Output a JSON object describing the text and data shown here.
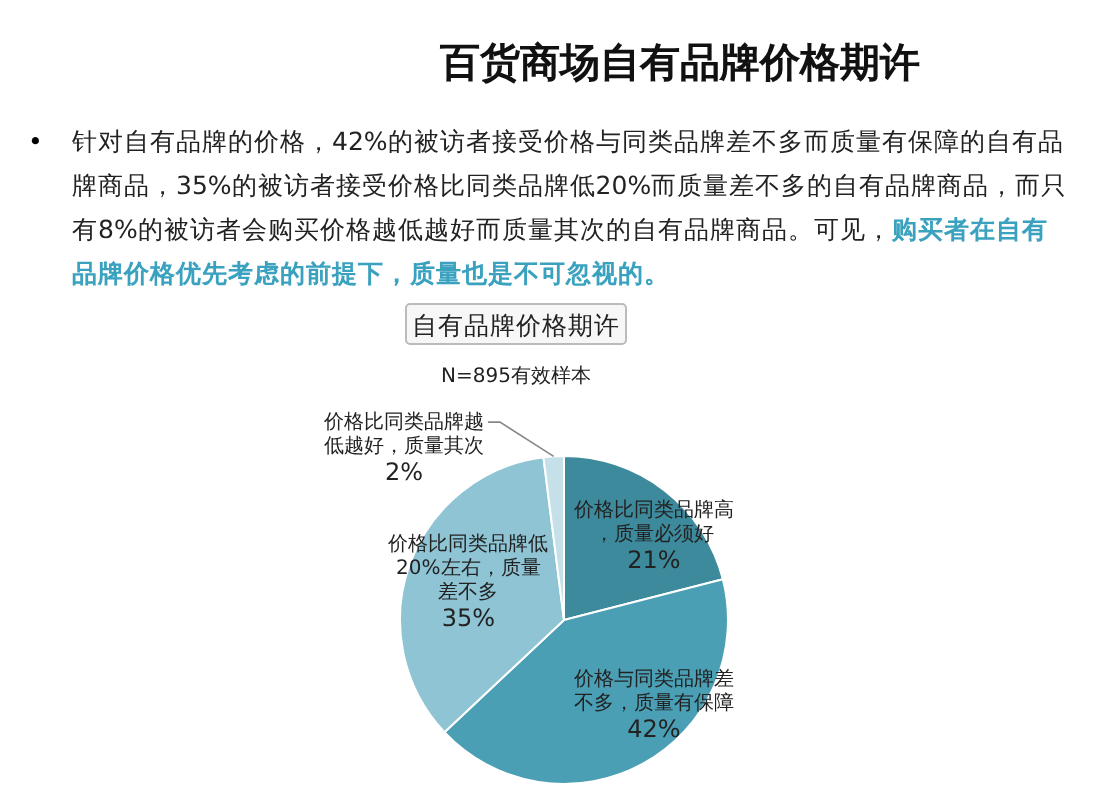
{
  "chart_data": {
    "type": "pie",
    "title": "自有品牌价格期许",
    "subtitle": "N=895有效样本",
    "annotations": [
      "百货商场自有品牌价格期许",
      "•",
      "针对自有品牌的价格，42%的被访者接受价格与同类品牌差不多而质量有保障的自有品牌商品，35%的被访者接受价格比同类品牌低20%而质量差不多的自有品牌商品，而只有8%的被访者会购买价格越低越好而质量其次的自有品牌商品。可见，",
      "购买者在自有品牌价格优先考虑的前提下，质量也是不可忽视的。"
    ],
    "categories": [
      "价格比同类品牌高，质量必须好",
      "价格与同类品牌差不多，质量有保障",
      "价格比同类品牌低20%左右，质量差不多",
      "价格比同类品牌越低越好，质量其次"
    ],
    "values": [
      21,
      42,
      35,
      2
    ],
    "colors": [
      "#3d8a9c",
      "#4a9fb5",
      "#8ec4d4",
      "#c5e0e8"
    ],
    "value_labels": [
      "21%",
      "42%",
      "35%",
      "2%"
    ],
    "legend": false
  }
}
